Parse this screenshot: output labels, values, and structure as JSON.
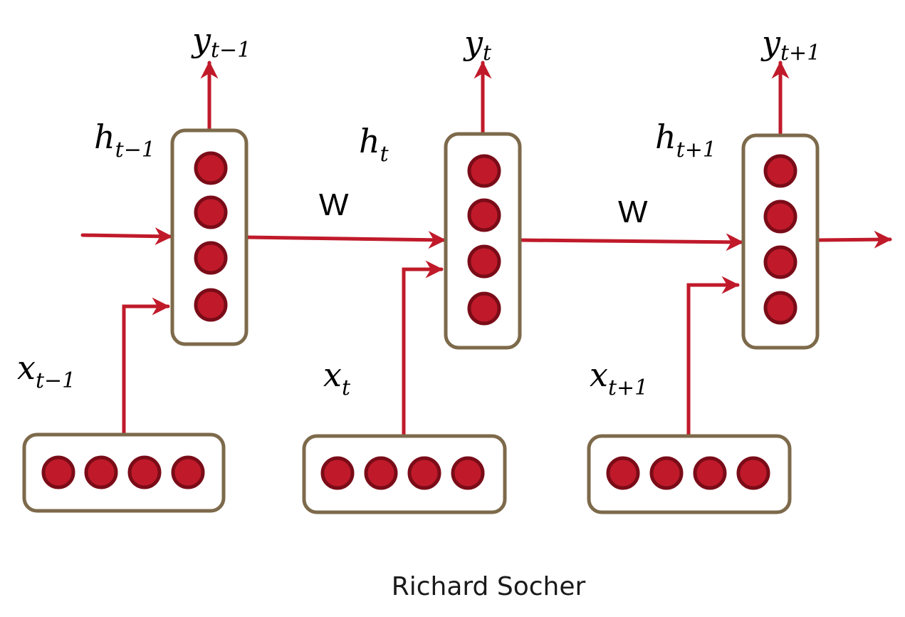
{
  "colors": {
    "box_stroke": "#7d6a4b",
    "node_fill": "#c01a2a",
    "node_stroke": "#7a0c18",
    "arrow": "#c01a2a"
  },
  "labels": {
    "y_prev": {
      "base": "y",
      "sub": "t−1"
    },
    "y_cur": {
      "base": "y",
      "sub": "t"
    },
    "y_next": {
      "base": "y",
      "sub": "t+1"
    },
    "h_prev": {
      "base": "h",
      "sub": "t−1"
    },
    "h_cur": {
      "base": "h",
      "sub": "t"
    },
    "h_next": {
      "base": "h",
      "sub": "t+1"
    },
    "x_prev": {
      "base": "x",
      "sub": "t−1"
    },
    "x_cur": {
      "base": "x",
      "sub": "t"
    },
    "x_next": {
      "base": "x",
      "sub": "t+1"
    },
    "w_first": "W",
    "w_second": "W"
  },
  "credit": "Richard Socher",
  "hidden_units_per_step": 4,
  "input_units_per_step": 4
}
